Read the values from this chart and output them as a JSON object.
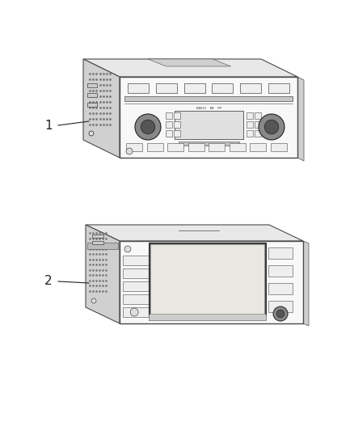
{
  "bg_color": "#ffffff",
  "line_color": "#4a4a4a",
  "dark_color": "#222222",
  "fill_front": "#f8f8f8",
  "fill_top": "#e8e8e8",
  "fill_side": "#d0d0d0",
  "fill_dark": "#aaaaaa",
  "fill_screen": "#e8e8e0",
  "mid_gray": "#777777",
  "label1": "1",
  "label2": "2",
  "figsize": [
    4.38,
    5.33
  ],
  "dpi": 100
}
